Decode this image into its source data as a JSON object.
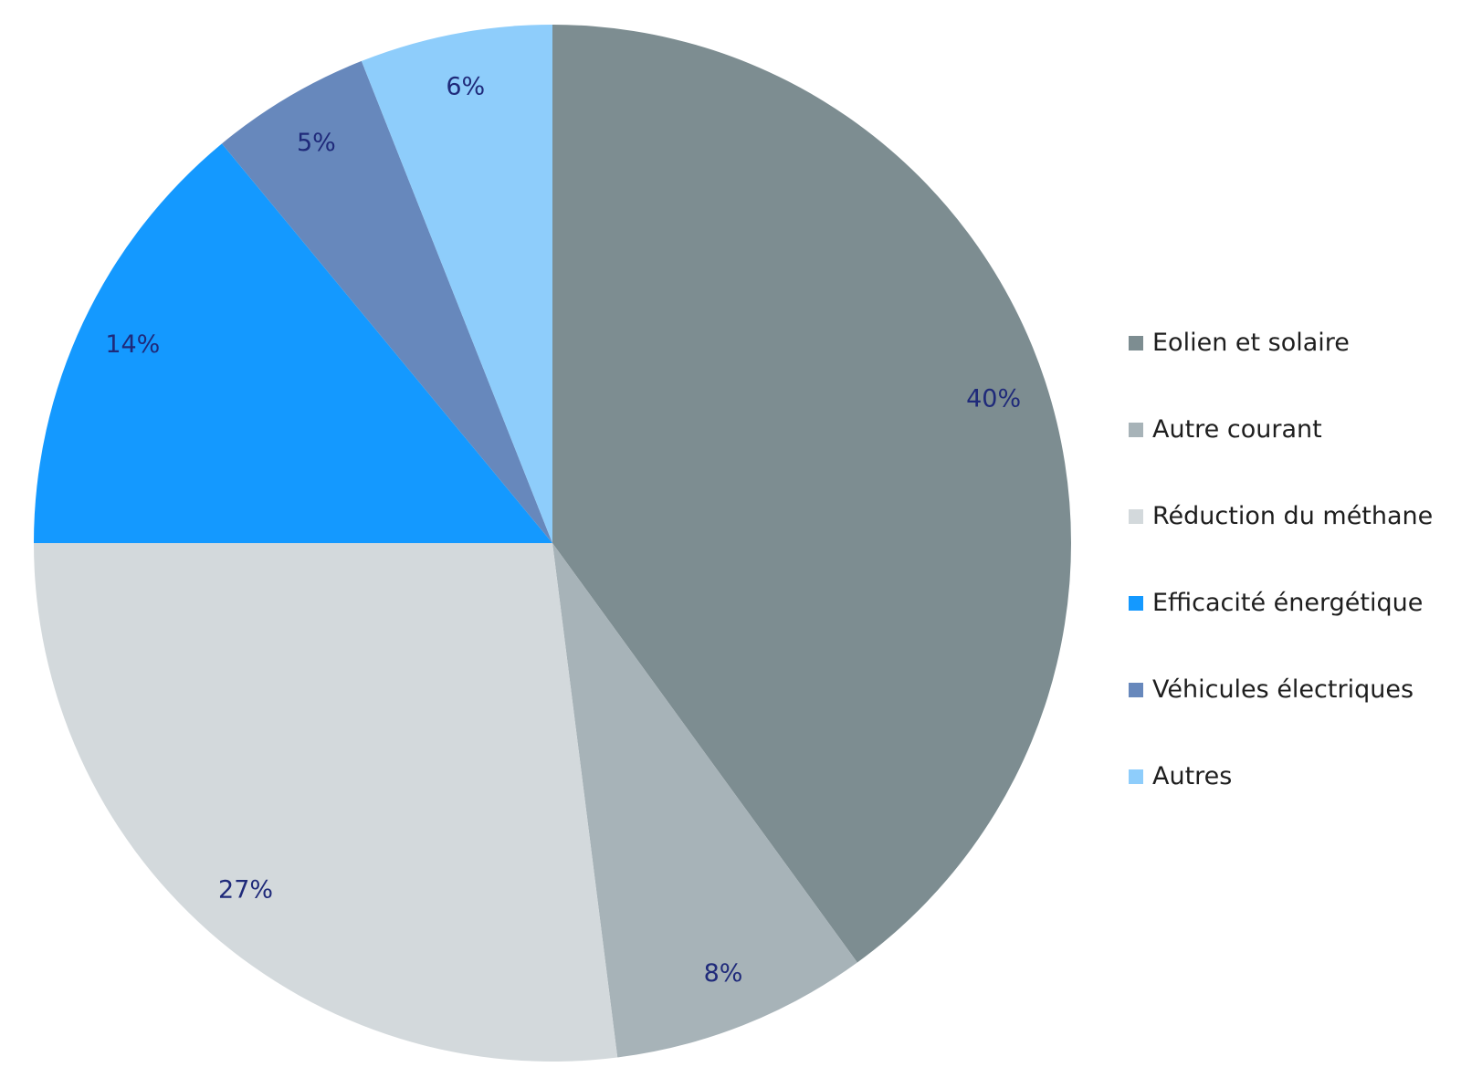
{
  "chart_data": {
    "type": "pie",
    "title": "",
    "categories": [
      "Eolien et solaire",
      "Autre courant",
      "Réduction du méthane",
      "Efficacité énergétique",
      "Véhicules électriques",
      "Autres"
    ],
    "values": [
      40,
      8,
      27,
      14,
      5,
      6
    ],
    "labels": [
      "40%",
      "8%",
      "27%",
      "14%",
      "5%",
      "6%"
    ],
    "colors": [
      "#7d8d91",
      "#a7b3b8",
      "#d3d9dc",
      "#1499ff",
      "#6788bc",
      "#8ecdfb"
    ],
    "start": "top",
    "direction": "clockwise",
    "legend_position": "right"
  }
}
